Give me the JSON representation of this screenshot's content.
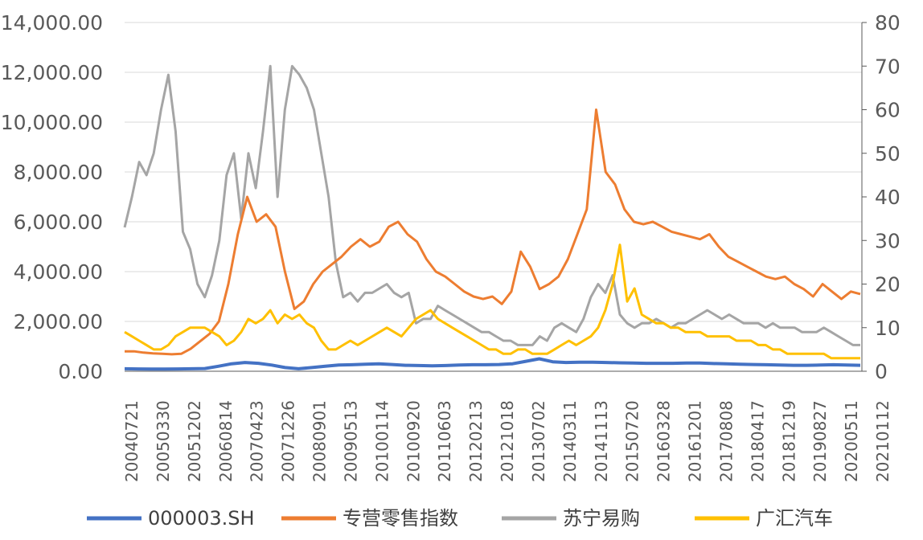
{
  "chart_data": {
    "type": "line",
    "title": "",
    "xlabel": "",
    "ylabel": "",
    "x_ticks": [
      "20040721",
      "20050330",
      "20051202",
      "20060814",
      "20070423",
      "20071226",
      "20080901",
      "20090513",
      "20100114",
      "20100920",
      "20110603",
      "20120213",
      "20121018",
      "20130702",
      "20140311",
      "20141113",
      "20150720",
      "20160328",
      "20161201",
      "20170808",
      "20180417",
      "20181219",
      "20190827",
      "20200511",
      "20210112"
    ],
    "y_left_ticks": [
      "0.00",
      "2,000.00",
      "4,000.00",
      "6,000.00",
      "8,000.00",
      "10,000.00",
      "12,000.00",
      "14,000.00"
    ],
    "y_left_lim": [
      0,
      14000
    ],
    "y_right_ticks": [
      "0",
      "10",
      "20",
      "30",
      "40",
      "50",
      "60",
      "70",
      "80"
    ],
    "y_right_lim": [
      0,
      80
    ],
    "grid": true,
    "legend_position": "bottom",
    "series": [
      {
        "name": "000003.SH",
        "axis": "left",
        "color": "#4472C4",
        "values": [
          100,
          95,
          90,
          90,
          95,
          100,
          110,
          200,
          300,
          350,
          320,
          250,
          150,
          100,
          150,
          200,
          250,
          260,
          280,
          300,
          270,
          240,
          230,
          220,
          230,
          250,
          260,
          260,
          270,
          300,
          400,
          500,
          380,
          350,
          360,
          360,
          350,
          340,
          330,
          320,
          320,
          320,
          330,
          330,
          310,
          300,
          280,
          270,
          260,
          250,
          240,
          240,
          250,
          260,
          250,
          240
        ]
      },
      {
        "name": "专营零售指数",
        "axis": "left",
        "color": "#ED7D31",
        "values": [
          800,
          800,
          750,
          720,
          700,
          680,
          700,
          900,
          1200,
          1500,
          2000,
          3500,
          5500,
          7000,
          6000,
          6300,
          5800,
          4000,
          2500,
          2800,
          3500,
          4000,
          4300,
          4600,
          5000,
          5300,
          5000,
          5200,
          5800,
          6000,
          5500,
          5200,
          4500,
          4000,
          3800,
          3500,
          3200,
          3000,
          2900,
          3000,
          2700,
          3200,
          4800,
          4200,
          3300,
          3500,
          3800,
          4500,
          5500,
          6500,
          10500,
          8000,
          7500,
          6500,
          6000,
          5900,
          6000,
          5800,
          5600,
          5500,
          5400,
          5300,
          5500,
          5000,
          4600,
          4400,
          4200,
          4000,
          3800,
          3700,
          3800,
          3500,
          3300,
          3000,
          3500,
          3200,
          2900,
          3200,
          3100
        ]
      },
      {
        "name": "苏宁易购",
        "axis": "right",
        "color": "#A5A5A5",
        "values": [
          33,
          40,
          48,
          45,
          50,
          60,
          68,
          55,
          32,
          28,
          20,
          17,
          22,
          30,
          45,
          50,
          35,
          50,
          42,
          55,
          70,
          40,
          60,
          70,
          68,
          65,
          60,
          50,
          40,
          25,
          17,
          18,
          16,
          18,
          18,
          19,
          20,
          18,
          17,
          18,
          11,
          12,
          12,
          15,
          14,
          13,
          12,
          11,
          10,
          9,
          9,
          8,
          7,
          7,
          6,
          6,
          6,
          8,
          7,
          10,
          11,
          10,
          9,
          12,
          17,
          20,
          18,
          22,
          13,
          11,
          10,
          11,
          11,
          12,
          11,
          10,
          11,
          11,
          12,
          13,
          14,
          13,
          12,
          13,
          12,
          11,
          11,
          11,
          10,
          11,
          10,
          10,
          10,
          9,
          9,
          9,
          10,
          9,
          8,
          7,
          6,
          6
        ]
      },
      {
        "name": "广汇汽车",
        "axis": "right",
        "color": "#FFC000",
        "values": [
          9,
          8,
          7,
          6,
          5,
          5,
          6,
          8,
          9,
          10,
          10,
          10,
          9,
          8,
          6,
          7,
          9,
          12,
          11,
          12,
          14,
          11,
          13,
          12,
          13,
          11,
          10,
          7,
          5,
          5,
          6,
          7,
          6,
          7,
          8,
          9,
          10,
          9,
          8,
          10,
          12,
          13,
          14,
          12,
          11,
          10,
          9,
          8,
          7,
          6,
          5,
          5,
          4,
          4,
          5,
          5,
          4,
          4,
          4,
          5,
          6,
          7,
          6,
          7,
          8,
          10,
          14,
          20,
          29,
          16,
          19,
          13,
          12,
          11,
          11,
          10,
          10,
          9,
          9,
          9,
          8,
          8,
          8,
          8,
          7,
          7,
          7,
          6,
          6,
          5,
          5,
          4,
          4,
          4,
          4,
          4,
          4,
          3,
          3,
          3,
          3,
          3
        ]
      }
    ]
  }
}
